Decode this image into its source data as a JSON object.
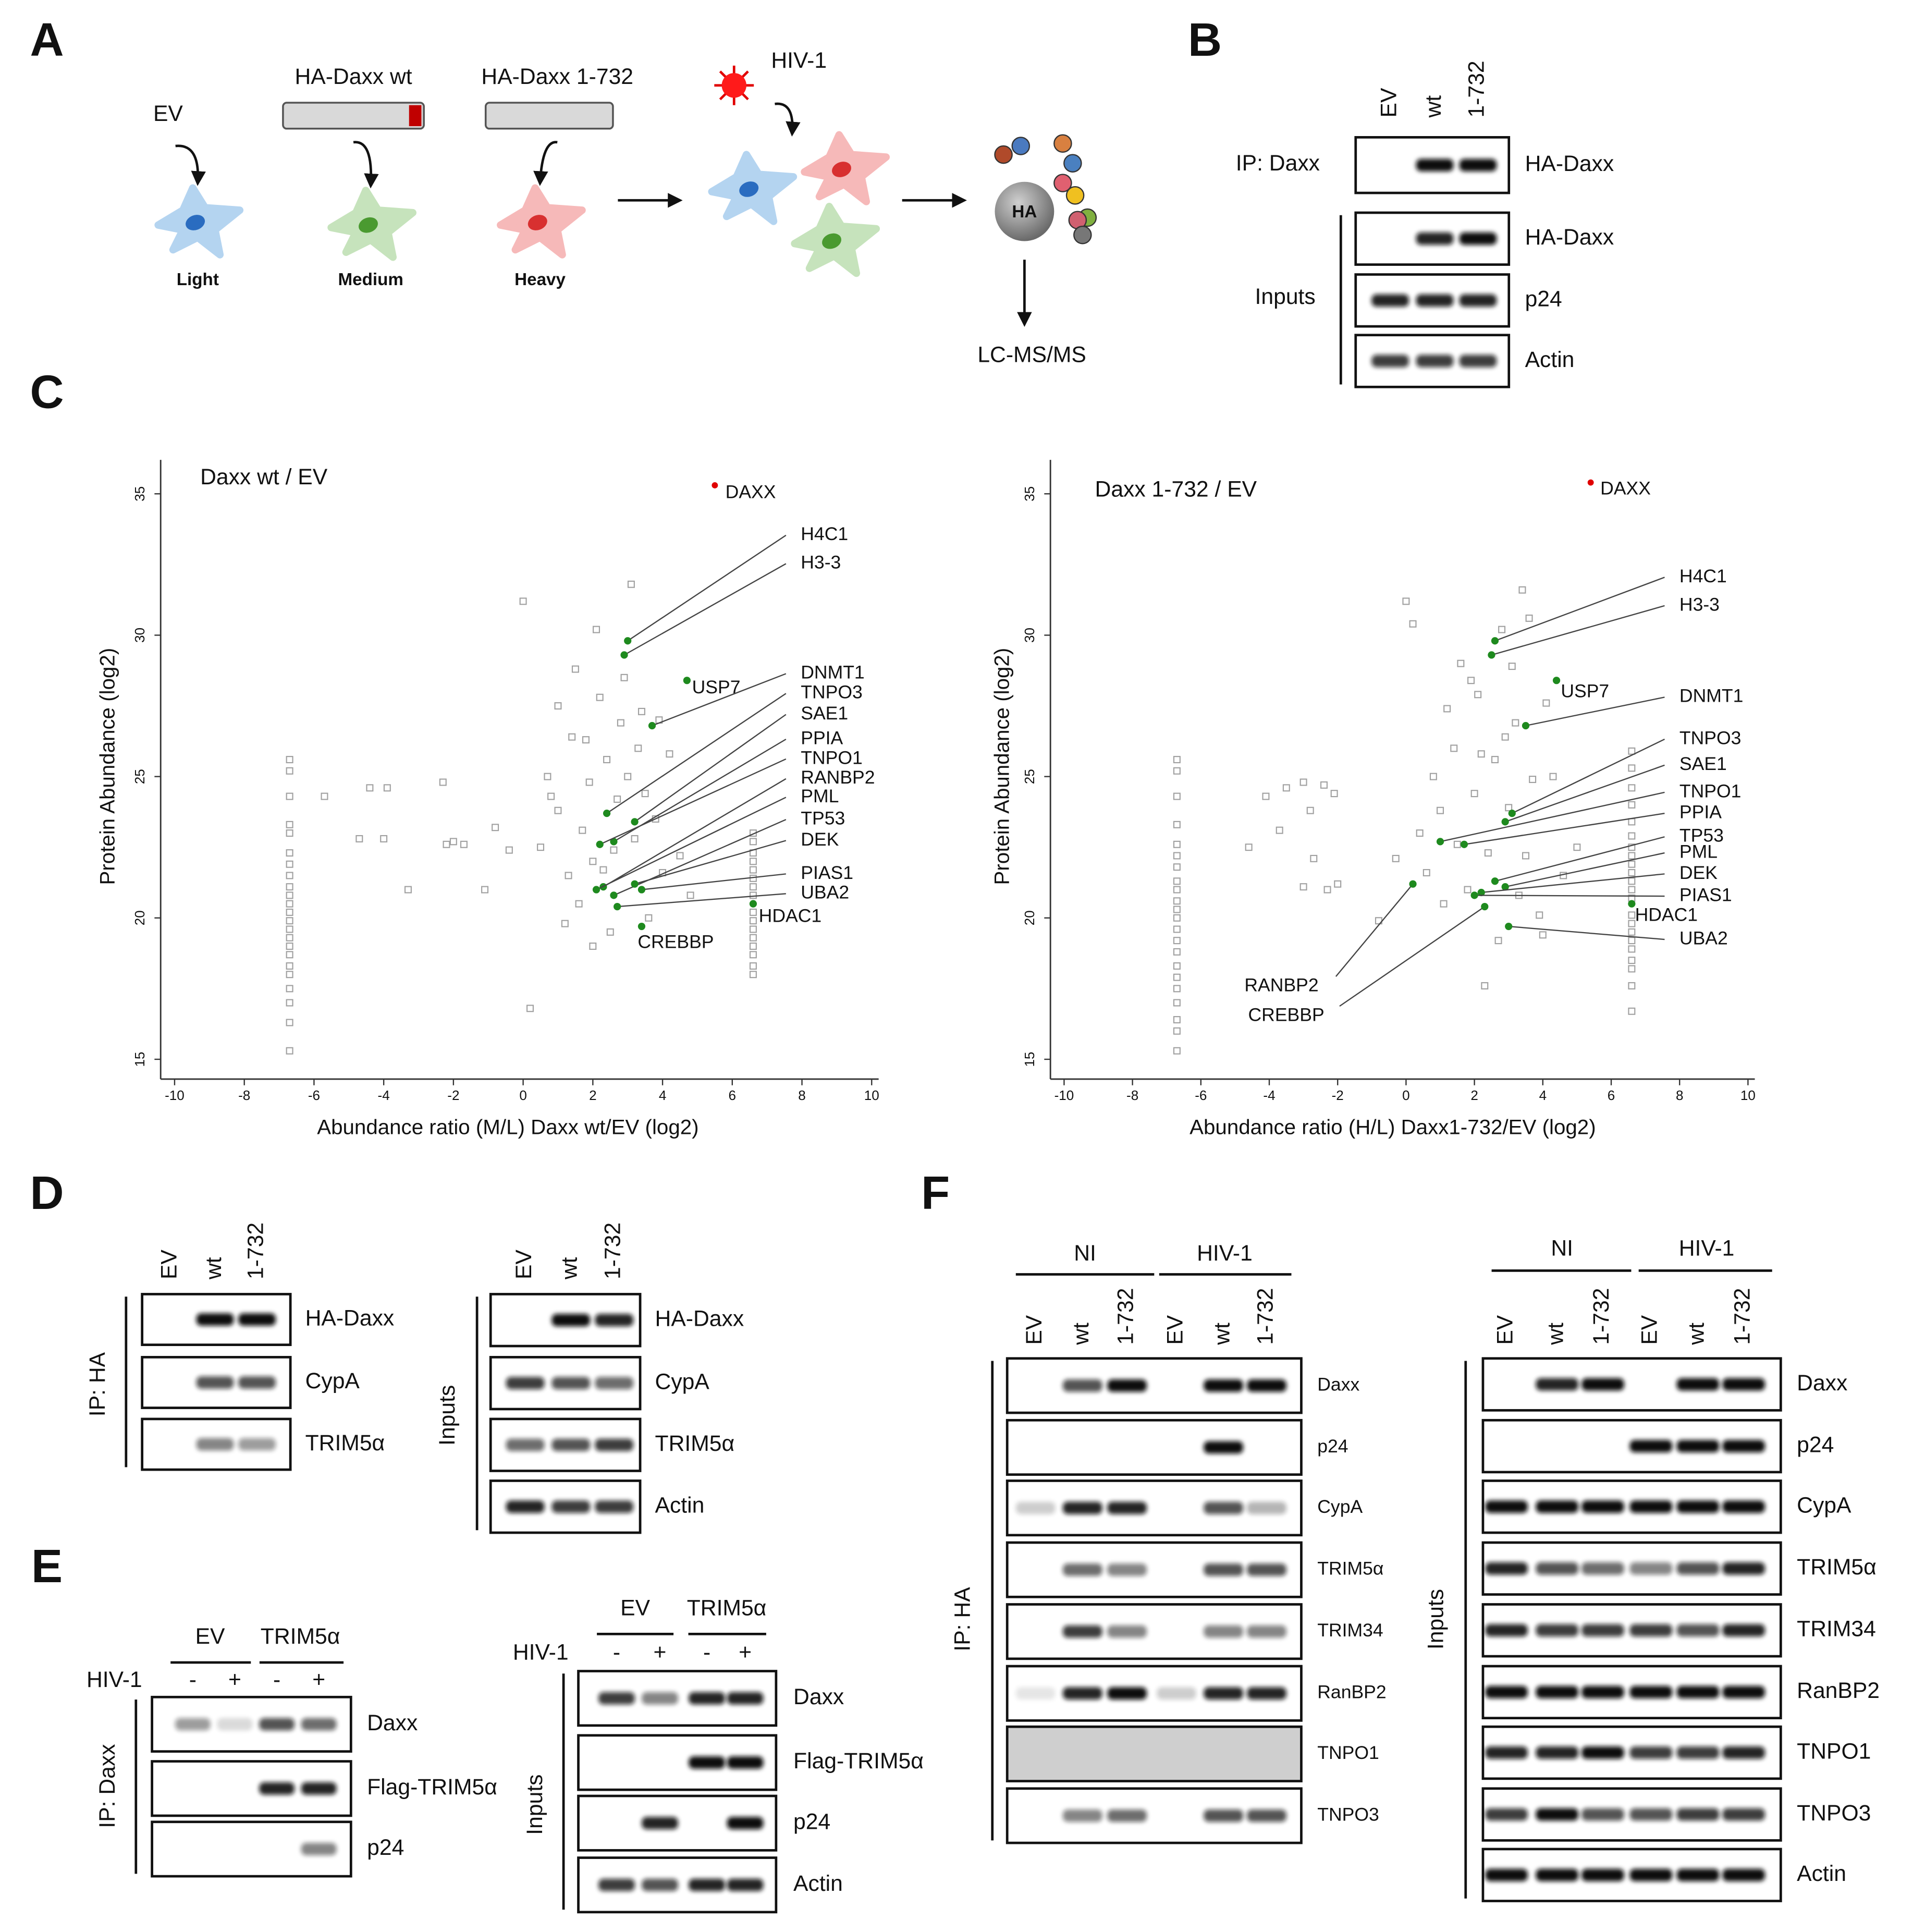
{
  "panel_a": {
    "letter": "A",
    "constructs": [
      "EV",
      "HA-Daxx wt",
      "HA-Daxx 1-732"
    ],
    "labels": [
      "Light",
      "Medium",
      "Heavy"
    ],
    "virus": "HIV-1",
    "bead": "HA",
    "readout": "LC-MS/MS"
  },
  "panel_b": {
    "letter": "B",
    "lanes": [
      "EV",
      "wt",
      "1-732"
    ],
    "blocks": [
      {
        "side_label": "IP: Daxx",
        "rows": [
          "HA-Daxx"
        ]
      },
      {
        "side_label": "Inputs",
        "rows": [
          "HA-Daxx",
          "p24",
          "Actin"
        ]
      }
    ]
  },
  "panel_c": {
    "letter": "C",
    "charts": [
      {
        "type": "scatter",
        "title": "Daxx wt / EV",
        "xlabel": "Abundance ratio (M/L) Daxx wt/EV (log2)",
        "ylabel": "Protein Abundance (log2)",
        "xlim": [
          -10.4,
          10.2
        ],
        "ylim": [
          14.3,
          36.2
        ],
        "xticks": [
          -10,
          -8,
          -6,
          -4,
          -2,
          0,
          2,
          4,
          6,
          8,
          10
        ],
        "yticks": [
          15,
          20,
          25,
          30,
          35
        ],
        "point_color": "#a0a0a0",
        "highlight_color": "#1e8a1e",
        "label_color": "#2f9e2f",
        "bait": {
          "name": "DAXX",
          "x": 5.5,
          "y": 35.3,
          "color": "#e00000"
        },
        "proteins": [
          {
            "name": "H4C1",
            "x": 3.0,
            "y": 29.8
          },
          {
            "name": "H3-3",
            "x": 2.9,
            "y": 29.3
          },
          {
            "name": "USP7",
            "x": 4.7,
            "y": 28.4
          },
          {
            "name": "DNMT1",
            "x": 3.7,
            "y": 26.8
          },
          {
            "name": "TNPO3",
            "x": 2.4,
            "y": 23.7
          },
          {
            "name": "SAE1",
            "x": 3.2,
            "y": 23.4
          },
          {
            "name": "PPIA",
            "x": 2.6,
            "y": 22.7
          },
          {
            "name": "TNPO1",
            "x": 2.2,
            "y": 22.6
          },
          {
            "name": "RANBP2",
            "x": 2.3,
            "y": 21.1
          },
          {
            "name": "PML",
            "x": 2.1,
            "y": 21.0
          },
          {
            "name": "TP53",
            "x": 2.6,
            "y": 20.8
          },
          {
            "name": "DEK",
            "x": 3.2,
            "y": 21.2
          },
          {
            "name": "PIAS1",
            "x": 3.4,
            "y": 21.0
          },
          {
            "name": "UBA2",
            "x": 2.7,
            "y": 20.4
          },
          {
            "name": "HDAC1",
            "x": 6.6,
            "y": 20.5
          },
          {
            "name": "CREBBP",
            "x": 3.4,
            "y": 19.7
          }
        ],
        "points": [
          [
            -6.7,
            25.6
          ],
          [
            -6.7,
            25.2
          ],
          [
            -6.7,
            24.3
          ],
          [
            -6.7,
            23.3
          ],
          [
            -6.7,
            23.0
          ],
          [
            -6.7,
            22.3
          ],
          [
            -6.7,
            21.9
          ],
          [
            -6.7,
            21.5
          ],
          [
            -6.7,
            21.1
          ],
          [
            -6.7,
            20.8
          ],
          [
            -6.7,
            20.5
          ],
          [
            -6.7,
            20.2
          ],
          [
            -6.7,
            19.9
          ],
          [
            -6.7,
            19.6
          ],
          [
            -6.7,
            19.3
          ],
          [
            -6.7,
            19.0
          ],
          [
            -6.7,
            18.7
          ],
          [
            -6.7,
            18.3
          ],
          [
            -6.7,
            18.0
          ],
          [
            -6.7,
            17.5
          ],
          [
            -6.7,
            17.0
          ],
          [
            -6.7,
            16.3
          ],
          [
            -6.7,
            15.3
          ],
          [
            6.6,
            23.0
          ],
          [
            6.6,
            22.7
          ],
          [
            6.6,
            22.3
          ],
          [
            6.6,
            22.0
          ],
          [
            6.6,
            21.7
          ],
          [
            6.6,
            21.4
          ],
          [
            6.6,
            21.1
          ],
          [
            6.6,
            20.8
          ],
          [
            6.6,
            20.2
          ],
          [
            6.6,
            19.9
          ],
          [
            6.6,
            19.6
          ],
          [
            6.6,
            19.3
          ],
          [
            6.6,
            19.0
          ],
          [
            6.6,
            18.7
          ],
          [
            6.6,
            18.3
          ],
          [
            6.6,
            18.0
          ],
          [
            -5.7,
            24.3
          ],
          [
            -4.4,
            24.6
          ],
          [
            -3.9,
            24.6
          ],
          [
            -4.7,
            22.8
          ],
          [
            -4.0,
            22.8
          ],
          [
            -2.3,
            24.8
          ],
          [
            -2.2,
            22.6
          ],
          [
            -2.0,
            22.7
          ],
          [
            -1.7,
            22.6
          ],
          [
            -3.3,
            21.0
          ],
          [
            -1.1,
            21.0
          ],
          [
            -0.8,
            23.2
          ],
          [
            -0.4,
            22.4
          ],
          [
            0.0,
            31.2
          ],
          [
            0.2,
            16.8
          ],
          [
            0.5,
            22.5
          ],
          [
            0.7,
            25.0
          ],
          [
            1.0,
            27.5
          ],
          [
            1.0,
            23.8
          ],
          [
            1.3,
            21.5
          ],
          [
            1.5,
            28.8
          ],
          [
            1.6,
            20.5
          ],
          [
            1.8,
            26.3
          ],
          [
            1.9,
            24.8
          ],
          [
            2.0,
            22.0
          ],
          [
            2.2,
            27.8
          ],
          [
            2.4,
            25.6
          ],
          [
            2.5,
            19.5
          ],
          [
            2.7,
            24.2
          ],
          [
            2.8,
            26.9
          ],
          [
            3.0,
            25.0
          ],
          [
            3.1,
            31.8
          ],
          [
            3.2,
            22.8
          ],
          [
            3.4,
            27.3
          ],
          [
            3.5,
            24.4
          ],
          [
            3.6,
            20.0
          ],
          [
            3.8,
            23.5
          ],
          [
            4.0,
            21.6
          ],
          [
            4.2,
            25.8
          ],
          [
            4.5,
            22.2
          ],
          [
            1.2,
            19.8
          ],
          [
            2.1,
            30.2
          ],
          [
            2.9,
            28.5
          ],
          [
            1.7,
            23.1
          ],
          [
            2.3,
            21.7
          ],
          [
            0.8,
            24.3
          ],
          [
            3.3,
            26.0
          ],
          [
            2.6,
            22.4
          ],
          [
            3.9,
            27.0
          ],
          [
            4.8,
            20.8
          ],
          [
            1.4,
            26.4
          ],
          [
            2.0,
            19.0
          ]
        ]
      },
      {
        "type": "scatter",
        "title": "Daxx 1-732 / EV",
        "xlabel": "Abundance ratio (H/L) Daxx1-732/EV (log2)",
        "ylabel": "Protein Abundance (log2)",
        "xlim": [
          -10.4,
          10.2
        ],
        "ylim": [
          14.3,
          36.2
        ],
        "xticks": [
          -10,
          -8,
          -6,
          -4,
          -2,
          0,
          2,
          4,
          6,
          8,
          10
        ],
        "yticks": [
          15,
          20,
          25,
          30,
          35
        ],
        "point_color": "#a0a0a0",
        "highlight_color": "#1e8a1e",
        "label_color": "#2f9e2f",
        "bait": {
          "name": "DAXX",
          "x": 5.4,
          "y": 35.4,
          "color": "#e00000"
        },
        "proteins": [
          {
            "name": "H4C1",
            "x": 2.6,
            "y": 29.8
          },
          {
            "name": "H3-3",
            "x": 2.5,
            "y": 29.3
          },
          {
            "name": "USP7",
            "x": 4.4,
            "y": 28.4
          },
          {
            "name": "DNMT1",
            "x": 3.5,
            "y": 26.8
          },
          {
            "name": "TNPO3",
            "x": 3.1,
            "y": 23.7
          },
          {
            "name": "SAE1",
            "x": 2.9,
            "y": 23.4
          },
          {
            "name": "TNPO1",
            "x": 1.0,
            "y": 22.7
          },
          {
            "name": "PPIA",
            "x": 1.7,
            "y": 22.6
          },
          {
            "name": "TP53",
            "x": 2.6,
            "y": 21.3
          },
          {
            "name": "PML",
            "x": 2.9,
            "y": 21.1
          },
          {
            "name": "DEK",
            "x": 2.2,
            "y": 20.9
          },
          {
            "name": "PIAS1",
            "x": 2.0,
            "y": 20.8
          },
          {
            "name": "UBA2",
            "x": 3.0,
            "y": 19.7
          },
          {
            "name": "HDAC1",
            "x": 6.6,
            "y": 20.5
          },
          {
            "name": "RANBP2",
            "x": 0.2,
            "y": 21.2
          },
          {
            "name": "CREBBP",
            "x": 2.3,
            "y": 20.4
          }
        ],
        "points": [
          [
            -6.7,
            25.6
          ],
          [
            -6.7,
            25.2
          ],
          [
            -6.7,
            24.3
          ],
          [
            -6.7,
            23.3
          ],
          [
            -6.7,
            22.6
          ],
          [
            -6.7,
            22.2
          ],
          [
            -6.7,
            21.8
          ],
          [
            -6.7,
            21.3
          ],
          [
            -6.7,
            21.0
          ],
          [
            -6.7,
            20.6
          ],
          [
            -6.7,
            20.3
          ],
          [
            -6.7,
            20.0
          ],
          [
            -6.7,
            19.6
          ],
          [
            -6.7,
            19.2
          ],
          [
            -6.7,
            18.8
          ],
          [
            -6.7,
            18.3
          ],
          [
            -6.7,
            17.9
          ],
          [
            -6.7,
            17.5
          ],
          [
            -6.7,
            17.0
          ],
          [
            -6.7,
            16.4
          ],
          [
            -6.7,
            16.0
          ],
          [
            -6.7,
            15.3
          ],
          [
            6.6,
            25.9
          ],
          [
            6.6,
            25.3
          ],
          [
            6.6,
            24.6
          ],
          [
            6.6,
            24.0
          ],
          [
            6.6,
            23.4
          ],
          [
            6.6,
            22.9
          ],
          [
            6.6,
            22.5
          ],
          [
            6.6,
            22.2
          ],
          [
            6.6,
            21.9
          ],
          [
            6.6,
            21.6
          ],
          [
            6.6,
            21.3
          ],
          [
            6.6,
            21.0
          ],
          [
            6.6,
            20.7
          ],
          [
            6.6,
            20.1
          ],
          [
            6.6,
            19.8
          ],
          [
            6.6,
            19.5
          ],
          [
            6.6,
            19.2
          ],
          [
            6.6,
            18.9
          ],
          [
            6.6,
            18.5
          ],
          [
            6.6,
            18.2
          ],
          [
            6.6,
            17.6
          ],
          [
            6.6,
            16.7
          ],
          [
            -4.1,
            24.3
          ],
          [
            -3.5,
            24.6
          ],
          [
            -3.0,
            24.8
          ],
          [
            -2.4,
            24.7
          ],
          [
            -2.1,
            24.4
          ],
          [
            -2.8,
            23.8
          ],
          [
            -4.6,
            22.5
          ],
          [
            -3.7,
            23.1
          ],
          [
            -2.7,
            22.1
          ],
          [
            -2.3,
            21.0
          ],
          [
            -2.0,
            21.2
          ],
          [
            -3.0,
            21.1
          ],
          [
            -0.8,
            19.9
          ],
          [
            -0.3,
            22.1
          ],
          [
            0.0,
            31.2
          ],
          [
            0.2,
            30.4
          ],
          [
            0.4,
            23.0
          ],
          [
            0.8,
            25.0
          ],
          [
            1.2,
            27.4
          ],
          [
            1.4,
            26.0
          ],
          [
            1.6,
            29.0
          ],
          [
            1.8,
            21.0
          ],
          [
            2.0,
            24.4
          ],
          [
            2.1,
            27.9
          ],
          [
            2.3,
            17.6
          ],
          [
            2.4,
            22.3
          ],
          [
            2.6,
            25.6
          ],
          [
            2.8,
            30.2
          ],
          [
            3.0,
            23.9
          ],
          [
            3.2,
            26.9
          ],
          [
            3.4,
            31.6
          ],
          [
            3.5,
            22.2
          ],
          [
            3.7,
            24.9
          ],
          [
            3.9,
            20.1
          ],
          [
            4.1,
            27.6
          ],
          [
            4.3,
            25.0
          ],
          [
            4.6,
            21.5
          ],
          [
            5.0,
            22.5
          ],
          [
            1.0,
            23.8
          ],
          [
            1.9,
            28.4
          ],
          [
            2.7,
            19.2
          ],
          [
            3.3,
            20.8
          ],
          [
            0.6,
            21.6
          ],
          [
            2.2,
            25.8
          ],
          [
            3.6,
            30.6
          ],
          [
            1.5,
            22.6
          ],
          [
            2.9,
            26.4
          ],
          [
            4.0,
            19.4
          ],
          [
            1.1,
            20.5
          ],
          [
            3.1,
            28.9
          ]
        ]
      }
    ]
  },
  "panel_d": {
    "letter": "D",
    "blots": [
      {
        "lanes": [
          "EV",
          "wt",
          "1-732"
        ],
        "side_label": "IP: HA",
        "rows": [
          "HA-Daxx",
          "CypA",
          "TRIM5α"
        ]
      },
      {
        "lanes": [
          "EV",
          "wt",
          "1-732"
        ],
        "side_label": "Inputs",
        "rows": [
          "HA-Daxx",
          "CypA",
          "TRIM5α",
          "Actin"
        ]
      }
    ]
  },
  "panel_e": {
    "letter": "E",
    "blots": [
      {
        "groups": [
          "EV",
          "TRIM5α"
        ],
        "treatment": "HIV-1",
        "lanes": [
          "-",
          "+",
          "-",
          "+"
        ],
        "side_label": "IP: Daxx",
        "rows": [
          "Daxx",
          "Flag-TRIM5α",
          "p24"
        ]
      },
      {
        "groups": [
          "EV",
          "TRIM5α"
        ],
        "treatment": "HIV-1",
        "lanes": [
          "-",
          "+",
          "-",
          "+"
        ],
        "side_label": "Inputs",
        "rows": [
          "Daxx",
          "Flag-TRIM5α",
          "p24",
          "Actin"
        ]
      }
    ]
  },
  "panel_f": {
    "letter": "F",
    "blots": [
      {
        "groups": [
          "NI",
          "HIV-1"
        ],
        "lanes": [
          "EV",
          "wt",
          "1-732",
          "EV",
          "wt",
          "1-732"
        ],
        "side_label": "IP: HA",
        "rows": [
          "Daxx",
          "p24",
          "CypA",
          "TRIM5α",
          "TRIM34",
          "RanBP2",
          "TNPO1",
          "TNPO3"
        ]
      },
      {
        "groups": [
          "NI",
          "HIV-1"
        ],
        "lanes": [
          "EV",
          "wt",
          "1-732",
          "EV",
          "wt",
          "1-732"
        ],
        "side_label": "Inputs",
        "rows": [
          "Daxx",
          "p24",
          "CypA",
          "TRIM5α",
          "TRIM34",
          "RanBP2",
          "TNPO1",
          "TNPO3",
          "Actin"
        ]
      }
    ]
  }
}
